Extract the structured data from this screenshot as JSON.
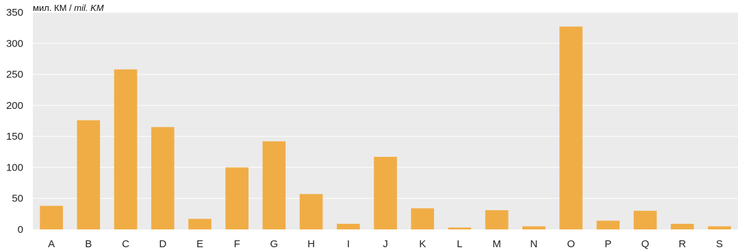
{
  "chart_data": {
    "type": "bar",
    "unit_label_main": "мил. КМ",
    "unit_label_sep": " / ",
    "unit_label_alt": "mil. KM",
    "categories": [
      "A",
      "B",
      "C",
      "D",
      "E",
      "F",
      "G",
      "H",
      "I",
      "J",
      "K",
      "L",
      "M",
      "N",
      "O",
      "P",
      "Q",
      "R",
      "S"
    ],
    "values": [
      38,
      176,
      258,
      165,
      17,
      100,
      142,
      57,
      9,
      117,
      34,
      3,
      31,
      5,
      327,
      14,
      30,
      9,
      5
    ],
    "ylim": [
      0,
      350
    ],
    "yticks": [
      0,
      50,
      100,
      150,
      200,
      250,
      300,
      350
    ],
    "grid": true,
    "legend": "none",
    "colors": {
      "bar": "#f0ad45",
      "plot_background": "#ebebeb",
      "grid": "#ffffff"
    }
  }
}
